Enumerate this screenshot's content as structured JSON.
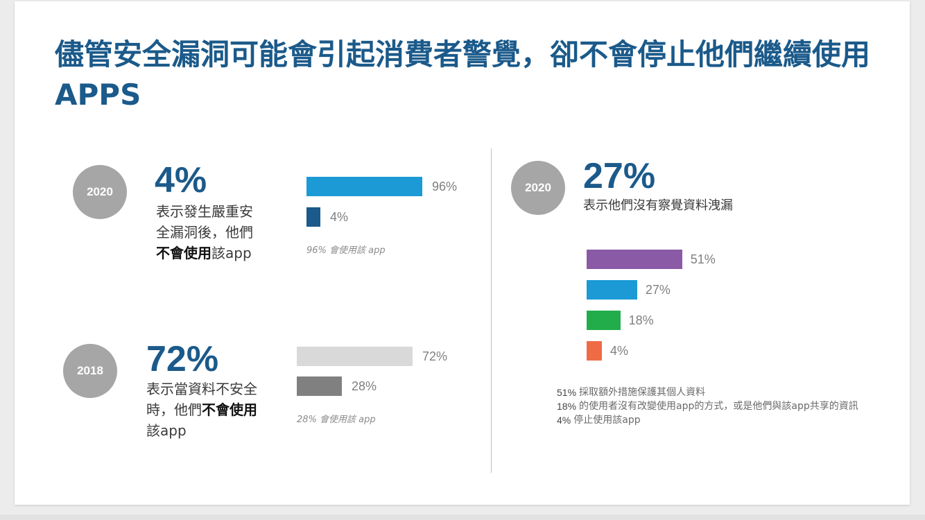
{
  "slide": {
    "title": "儘管安全漏洞可能會引起消費者警覺，卻不會停止他們繼續使用 APPS"
  },
  "block_2020_left": {
    "year": "2020",
    "big_number": "4%",
    "desc_line1": "表示發生嚴重安",
    "desc_line2": "全漏洞後，他們",
    "desc_bold": "不會使用",
    "desc_tail": "該app",
    "note": "96% 會使用該 app",
    "bars": [
      {
        "label": "96%",
        "value": 96,
        "color": "#1b9ad6"
      },
      {
        "label": "4%",
        "value": 4,
        "color": "#1b5a8a"
      }
    ]
  },
  "block_2018": {
    "year": "2018",
    "big_number": "72%",
    "desc_line1": "表示當資料不安全",
    "desc_pre": "時，他們",
    "desc_bold": "不會使用",
    "desc_tail": "該app",
    "note": "28% 會使用該 app",
    "bars": [
      {
        "label": "72%",
        "value": 72,
        "color": "#d9d9d9"
      },
      {
        "label": "28%",
        "value": 28,
        "color": "#808080"
      }
    ]
  },
  "block_2020_right": {
    "year": "2020",
    "big_number": "27%",
    "desc": "表示他們沒有察覺資料洩漏",
    "bars": [
      {
        "label": "51%",
        "value": 51,
        "color": "#8a5aa6"
      },
      {
        "label": "27%",
        "value": 27,
        "color": "#1b9ad6"
      },
      {
        "label": "18%",
        "value": 18,
        "color": "#22ad4a"
      },
      {
        "label": "4%",
        "value": 4,
        "color": "#ef6b45"
      }
    ],
    "legend": [
      {
        "pct": "51%",
        "text": "採取額外措施保護其個人資料"
      },
      {
        "pct": "18%",
        "text": "的使用者沒有改變使用app的方式，或是他們與該app共享的資訊"
      },
      {
        "pct": "4%",
        "text": "停止使用該app"
      }
    ]
  }
}
